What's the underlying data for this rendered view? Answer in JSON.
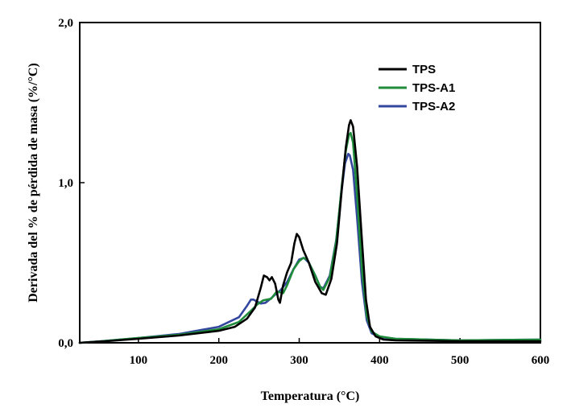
{
  "chart_data": {
    "type": "line",
    "title": "",
    "xlabel": "Temperatura (°C)",
    "ylabel": "Derivada del % de pérdida de masa (%/°C)",
    "xlim": [
      27,
      600
    ],
    "ylim": [
      0,
      2.0
    ],
    "x_ticks": [
      100,
      200,
      300,
      400,
      500,
      600
    ],
    "x_tick_labels": [
      "100",
      "200",
      "300",
      "400",
      "500",
      "600"
    ],
    "y_ticks": [
      0,
      1.0,
      2.0
    ],
    "y_tick_labels": [
      "0,0",
      "1,0",
      "2,0"
    ],
    "legend_position": "top-right",
    "grid": false,
    "series": [
      {
        "name": "TPS",
        "color": "#000000",
        "points": [
          [
            27,
            0
          ],
          [
            60,
            0.01
          ],
          [
            100,
            0.025
          ],
          [
            150,
            0.045
          ],
          [
            200,
            0.075
          ],
          [
            220,
            0.1
          ],
          [
            235,
            0.15
          ],
          [
            245,
            0.22
          ],
          [
            252,
            0.34
          ],
          [
            256,
            0.42
          ],
          [
            260,
            0.41
          ],
          [
            263,
            0.39
          ],
          [
            266,
            0.41
          ],
          [
            270,
            0.37
          ],
          [
            274,
            0.27
          ],
          [
            276,
            0.25
          ],
          [
            280,
            0.36
          ],
          [
            285,
            0.44
          ],
          [
            290,
            0.5
          ],
          [
            294,
            0.62
          ],
          [
            297,
            0.68
          ],
          [
            300,
            0.66
          ],
          [
            305,
            0.58
          ],
          [
            312,
            0.5
          ],
          [
            320,
            0.38
          ],
          [
            328,
            0.31
          ],
          [
            333,
            0.3
          ],
          [
            340,
            0.4
          ],
          [
            347,
            0.62
          ],
          [
            353,
            0.96
          ],
          [
            358,
            1.22
          ],
          [
            362,
            1.36
          ],
          [
            364,
            1.39
          ],
          [
            367,
            1.35
          ],
          [
            372,
            1.1
          ],
          [
            378,
            0.64
          ],
          [
            383,
            0.27
          ],
          [
            388,
            0.1
          ],
          [
            395,
            0.04
          ],
          [
            405,
            0.02
          ],
          [
            420,
            0.015
          ],
          [
            500,
            0.01
          ],
          [
            600,
            0.01
          ]
        ]
      },
      {
        "name": "TPS-A1",
        "color": "#1e8c3a",
        "points": [
          [
            27,
            0
          ],
          [
            60,
            0.012
          ],
          [
            100,
            0.03
          ],
          [
            150,
            0.05
          ],
          [
            200,
            0.085
          ],
          [
            225,
            0.13
          ],
          [
            240,
            0.2
          ],
          [
            248,
            0.24
          ],
          [
            255,
            0.265
          ],
          [
            265,
            0.275
          ],
          [
            272,
            0.32
          ],
          [
            280,
            0.31
          ],
          [
            285,
            0.36
          ],
          [
            293,
            0.46
          ],
          [
            300,
            0.51
          ],
          [
            305,
            0.53
          ],
          [
            310,
            0.52
          ],
          [
            318,
            0.44
          ],
          [
            326,
            0.35
          ],
          [
            330,
            0.33
          ],
          [
            338,
            0.41
          ],
          [
            346,
            0.63
          ],
          [
            353,
            0.98
          ],
          [
            358,
            1.2
          ],
          [
            362,
            1.3
          ],
          [
            364,
            1.31
          ],
          [
            367,
            1.25
          ],
          [
            372,
            0.92
          ],
          [
            378,
            0.46
          ],
          [
            384,
            0.17
          ],
          [
            390,
            0.07
          ],
          [
            400,
            0.04
          ],
          [
            420,
            0.025
          ],
          [
            500,
            0.015
          ],
          [
            600,
            0.02
          ]
        ]
      },
      {
        "name": "TPS-A2",
        "color": "#34479f",
        "points": [
          [
            27,
            0
          ],
          [
            60,
            0.012
          ],
          [
            100,
            0.03
          ],
          [
            150,
            0.055
          ],
          [
            200,
            0.1
          ],
          [
            225,
            0.16
          ],
          [
            235,
            0.23
          ],
          [
            240,
            0.27
          ],
          [
            243,
            0.27
          ],
          [
            247,
            0.26
          ],
          [
            252,
            0.245
          ],
          [
            258,
            0.25
          ],
          [
            263,
            0.27
          ],
          [
            270,
            0.3
          ],
          [
            277,
            0.33
          ],
          [
            285,
            0.38
          ],
          [
            293,
            0.46
          ],
          [
            300,
            0.52
          ],
          [
            306,
            0.53
          ],
          [
            312,
            0.5
          ],
          [
            320,
            0.42
          ],
          [
            326,
            0.35
          ],
          [
            330,
            0.34
          ],
          [
            338,
            0.42
          ],
          [
            346,
            0.64
          ],
          [
            353,
            0.96
          ],
          [
            357,
            1.12
          ],
          [
            361,
            1.18
          ],
          [
            363,
            1.17
          ],
          [
            367,
            1.08
          ],
          [
            372,
            0.78
          ],
          [
            378,
            0.38
          ],
          [
            384,
            0.14
          ],
          [
            390,
            0.06
          ],
          [
            400,
            0.035
          ],
          [
            420,
            0.025
          ],
          [
            500,
            0.015
          ],
          [
            600,
            0.02
          ]
        ]
      }
    ]
  }
}
